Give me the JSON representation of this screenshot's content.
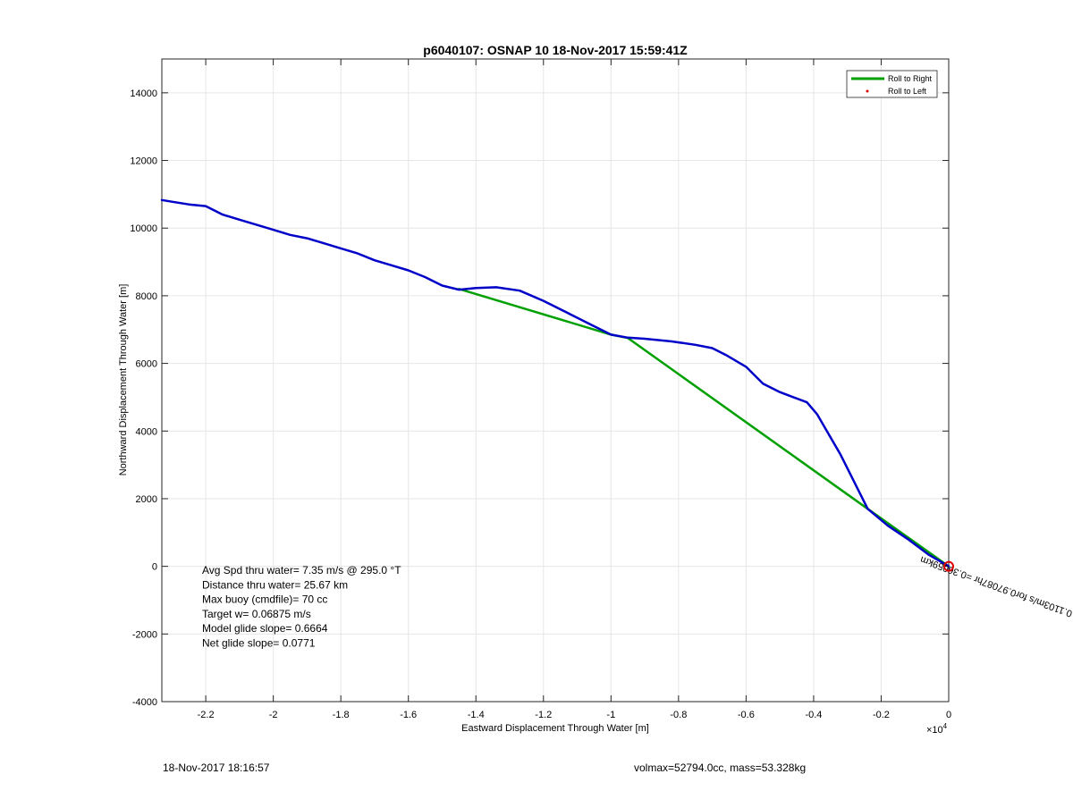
{
  "chart_data": {
    "type": "line",
    "title": "p6040107: OSNAP 10 18-Nov-2017 15:59:41Z",
    "xlabel": "Eastward Displacement Through Water [m]",
    "ylabel": "Northward Displacement Through Water [m]",
    "xlim": [
      -23300,
      0
    ],
    "ylim": [
      -4000,
      15000
    ],
    "x_exponent_label": "×10",
    "x_exponent_power": "4",
    "x_ticks": [
      -22000,
      -20000,
      -18000,
      -16000,
      -14000,
      -12000,
      -10000,
      -8000,
      -6000,
      -4000,
      -2000,
      0
    ],
    "x_tick_labels": [
      "-2.2",
      "-2",
      "-1.8",
      "-1.6",
      "-1.4",
      "-1.2",
      "-1",
      "-0.8",
      "-0.6",
      "-0.4",
      "-0.2",
      "0"
    ],
    "y_ticks": [
      -4000,
      -2000,
      0,
      2000,
      4000,
      6000,
      8000,
      10000,
      12000,
      14000
    ],
    "y_tick_labels": [
      "-4000",
      "-2000",
      "0",
      "2000",
      "4000",
      "6000",
      "8000",
      "10000",
      "12000",
      "14000"
    ],
    "grid": true,
    "legend_position": "top-right",
    "legend": [
      {
        "label": "Roll to Right",
        "color": "#00a000",
        "style": "line"
      },
      {
        "label": "Roll to Left",
        "color": "#e00000",
        "style": "dot"
      }
    ],
    "series": [
      {
        "name": "Roll to Right",
        "color": "#00a000",
        "x": [
          0,
          -2400,
          -9500,
          -10000,
          -14500
        ],
        "y": [
          0,
          1700,
          6750,
          6850,
          8200
        ]
      },
      {
        "color": "#0000c8",
        "x": [
          0,
          -600,
          -1200,
          -1800,
          -2400,
          -3200,
          -3900,
          -4200,
          -4600,
          -5000,
          -5500,
          -6000,
          -6600,
          -7000,
          -7500,
          -8200,
          -9000,
          -9500,
          -10000,
          -10500,
          -11200,
          -12000,
          -12700,
          -13400,
          -14000,
          -14500,
          -15000,
          -15500,
          -16000,
          -16500,
          -17000,
          -17500,
          -18000,
          -18500,
          -19000,
          -19500,
          -20000,
          -20500,
          -21000,
          -21500,
          -22000,
          -22500,
          -23000,
          -23300
        ],
        "y": [
          0,
          350,
          800,
          1200,
          1700,
          3300,
          4500,
          4850,
          5000,
          5150,
          5400,
          5900,
          6250,
          6450,
          6550,
          6650,
          6730,
          6760,
          6850,
          7100,
          7450,
          7850,
          8150,
          8250,
          8230,
          8180,
          8300,
          8550,
          8750,
          8900,
          9050,
          9250,
          9400,
          9550,
          9700,
          9800,
          9950,
          10100,
          10250,
          10400,
          10650,
          10700,
          10780,
          10830
        ]
      }
    ],
    "marker": {
      "x": 0,
      "y": 0,
      "color": "#e00000",
      "shape": "circle"
    },
    "annotations": [
      {
        "text": "Avg Spd thru water=  7.35 m/s @ 295.0 °T"
      },
      {
        "text": "Distance thru water= 25.67 km"
      },
      {
        "text": "Max buoy (cmdfile)= 70 cc"
      },
      {
        "text": "Target w= 0.06875 m/s"
      },
      {
        "text": "Model glide slope= 0.6664"
      },
      {
        "text": "Net glide slope= 0.0771"
      }
    ],
    "rotated_label": "0.1103m/s for0.97087hr =0.36059km",
    "rotated_label_near": {
      "x": -800,
      "y": 300
    }
  },
  "footer": {
    "date": "18-Nov-2017 18:16:57",
    "info": "volmax=52794.0cc, mass=53.328kg"
  }
}
